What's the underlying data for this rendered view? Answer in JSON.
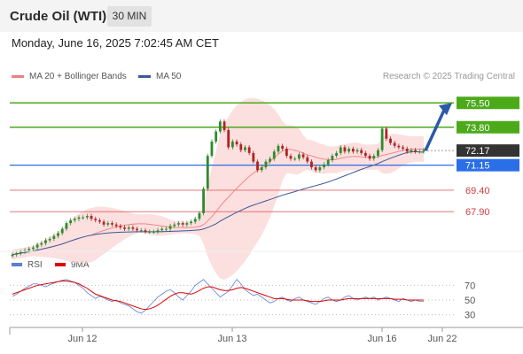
{
  "header": {
    "title": "Crude Oil (WTI)",
    "timeframe": "30 MIN"
  },
  "timestamp": "Monday, June 16, 2025 7:02:45 AM CET",
  "legend": {
    "bollinger": {
      "label": "MA 20 + Bollinger Bands",
      "color": "#f08080"
    },
    "ma50": {
      "label": "MA 50",
      "color": "#3a5a9a"
    }
  },
  "credit": "Research © 2025 Trading Central",
  "rsi_legend": {
    "rsi": {
      "label": "RSI",
      "color": "#5b7fd6"
    },
    "ma9": {
      "label": "9MA",
      "color": "#e00000"
    }
  },
  "chart_data": {
    "type": "candlestick",
    "x_ticks": [
      "Jun 12",
      "Jun 13",
      "Jun 16",
      "Jun 22"
    ],
    "y_range": [
      65.5,
      77.0
    ],
    "levels": [
      {
        "value": 75.5,
        "label": "75.50",
        "kind": "resistance",
        "color": "#4caa1a"
      },
      {
        "value": 73.8,
        "label": "73.80",
        "kind": "resistance",
        "color": "#4caa1a"
      },
      {
        "value": 72.17,
        "label": "72.17",
        "kind": "last",
        "color": "#333333"
      },
      {
        "value": 71.15,
        "label": "71.15",
        "kind": "pivot",
        "color": "#2a6ee8"
      },
      {
        "value": 69.4,
        "label": "69.40",
        "kind": "support",
        "color": "#e06060"
      },
      {
        "value": 67.9,
        "label": "67.90",
        "kind": "support",
        "color": "#e06060"
      }
    ],
    "closes": [
      64.9,
      65.0,
      65.1,
      65.2,
      65.3,
      65.4,
      65.6,
      65.7,
      65.9,
      66.0,
      66.2,
      66.4,
      66.7,
      67.1,
      67.3,
      67.4,
      67.5,
      67.5,
      67.6,
      67.4,
      67.3,
      67.2,
      67.0,
      67.1,
      67.0,
      66.9,
      66.8,
      66.7,
      66.8,
      66.7,
      66.6,
      66.6,
      66.5,
      66.5,
      66.5,
      66.6,
      66.7,
      66.7,
      66.9,
      67.0,
      67.1,
      67.0,
      67.1,
      67.2,
      67.4,
      67.8,
      69.5,
      71.8,
      72.8,
      73.5,
      74.2,
      73.6,
      72.4,
      72.8,
      72.6,
      72.2,
      72.4,
      72.0,
      71.4,
      70.8,
      71.0,
      71.4,
      71.6,
      72.1,
      72.5,
      72.3,
      71.8,
      71.6,
      71.6,
      71.9,
      71.7,
      71.4,
      71.0,
      70.8,
      71.0,
      71.2,
      71.5,
      71.8,
      72.0,
      72.4,
      72.1,
      72.3,
      72.1,
      72.2,
      72.0,
      71.8,
      71.6,
      71.8,
      72.2,
      73.7,
      73.0,
      72.7,
      72.5,
      72.4,
      72.3,
      72.1,
      72.2,
      72.1,
      72.1,
      72.2
    ],
    "forecast": {
      "from": 72.17,
      "to": 75.5
    },
    "rsi": {
      "levels": [
        70,
        50,
        30
      ],
      "y_range": [
        15,
        85
      ],
      "values": [
        55,
        58,
        62,
        66,
        69,
        72,
        72,
        70,
        68,
        71,
        73,
        75,
        77,
        78,
        76,
        74,
        70,
        66,
        60,
        56,
        52,
        55,
        53,
        50,
        48,
        50,
        46,
        44,
        42,
        38,
        34,
        32,
        36,
        42,
        48,
        54,
        58,
        62,
        64,
        60,
        54,
        50,
        56,
        62,
        70,
        74,
        78,
        72,
        66,
        60,
        54,
        58,
        62,
        70,
        78,
        72,
        64,
        60,
        56,
        58,
        54,
        50,
        46,
        48,
        52,
        54,
        50,
        48,
        52,
        54,
        50,
        48,
        46,
        44,
        48,
        52,
        54,
        50,
        48,
        50,
        54,
        56,
        52,
        50,
        52,
        54,
        52,
        54,
        50,
        52,
        54,
        52,
        50,
        48,
        52,
        50,
        48,
        50,
        48,
        48
      ],
      "ma9": [
        58,
        60,
        62,
        64,
        66,
        68,
        70,
        71,
        72,
        73,
        74,
        75,
        76,
        76,
        75,
        74,
        72,
        69,
        66,
        62,
        58,
        56,
        54,
        52,
        50,
        49,
        48,
        46,
        44,
        42,
        40,
        38,
        37,
        38,
        40,
        43,
        47,
        51,
        55,
        58,
        60,
        60,
        59,
        58,
        60,
        63,
        66,
        68,
        68,
        66,
        64,
        63,
        63,
        64,
        66,
        67,
        66,
        64,
        62,
        60,
        58,
        56,
        54,
        52,
        52,
        52,
        51,
        50,
        50,
        50,
        50,
        49,
        48,
        48,
        48,
        49,
        50,
        50,
        50,
        50,
        51,
        52,
        52,
        52,
        52,
        52,
        52,
        52,
        52,
        52,
        52,
        52,
        51,
        51,
        51,
        50,
        50,
        50,
        50,
        50
      ]
    }
  }
}
